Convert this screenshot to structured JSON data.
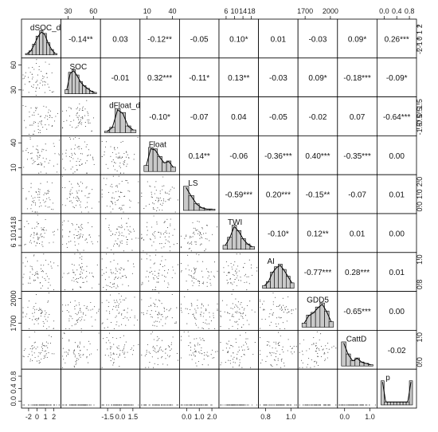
{
  "chart_data": {
    "type": "scatter_matrix",
    "variables": [
      "dSOC_dt",
      "SOC",
      "dFloat_dt",
      "Float",
      "LS",
      "TWI",
      "AI",
      "GDD5",
      "CattD",
      "p"
    ],
    "correlations": [
      [
        "",
        "-0.14**",
        "0.03",
        "-0.12**",
        "-0.05",
        "0.10*",
        "0.01",
        "-0.03",
        "0.09*",
        "0.26***"
      ],
      [
        "",
        "",
        "-0.01",
        "0.32***",
        "-0.11*",
        "0.13**",
        "-0.03",
        "0.09*",
        "-0.18***",
        "-0.09*"
      ],
      [
        "",
        "",
        "",
        "-0.10*",
        "-0.07",
        "0.04",
        "-0.05",
        "-0.02",
        "0.07",
        "-0.64***"
      ],
      [
        "",
        "",
        "",
        "",
        "0.14**",
        "-0.06",
        "-0.36***",
        "0.40***",
        "-0.35***",
        "0.00"
      ],
      [
        "",
        "",
        "",
        "",
        "",
        "-0.59***",
        "0.20***",
        "-0.15**",
        "-0.07",
        "0.01"
      ],
      [
        "",
        "",
        "",
        "",
        "",
        "",
        "-0.10*",
        "0.12**",
        "0.01",
        "0.00"
      ],
      [
        "",
        "",
        "",
        "",
        "",
        "",
        "",
        "-0.77***",
        "0.28***",
        "0.01"
      ],
      [
        "",
        "",
        "",
        "",
        "",
        "",
        "",
        "",
        "-0.65***",
        "0.00"
      ],
      [
        "",
        "",
        "",
        "",
        "",
        "",
        "",
        "",
        "",
        "-0.02"
      ]
    ],
    "top_axis_ticks": {
      "1": [
        "30",
        "60"
      ],
      "3": [
        "10",
        "40"
      ],
      "5": [
        "6",
        "10",
        "14",
        "18"
      ],
      "7": [
        "1700",
        "2000"
      ],
      "9": [
        "0.0",
        "0.4",
        "0.8"
      ]
    },
    "bottom_axis_ticks": {
      "0": [
        "-2",
        "0",
        "1",
        "2"
      ],
      "2": [
        "-1.5",
        "0.0",
        "1.5"
      ],
      "4": [
        "0.0",
        "1.0",
        "2.0"
      ],
      "6": [
        "0.8",
        "1.0"
      ],
      "8": [
        "0.0",
        "1.0"
      ]
    },
    "left_axis_ticks": {
      "1": [
        "30",
        "60"
      ],
      "3": [
        "10",
        "40"
      ],
      "5": [
        "6",
        "10",
        "14",
        "18"
      ],
      "7": [
        "1700",
        "2000"
      ],
      "9": [
        "0.0",
        "0.4",
        "0.8"
      ]
    },
    "right_axis_ticks": {
      "0": [
        "-2",
        "-1",
        "0",
        "1",
        "2"
      ],
      "2": [
        "-1.5",
        "-0.5",
        "0.5",
        "1.5"
      ],
      "4": [
        "0.0",
        "1.0",
        "2.0"
      ],
      "6": [
        "0.8",
        "1.0"
      ],
      "8": [
        "0.0",
        "1.0"
      ]
    },
    "histograms": [
      [
        1,
        3,
        8,
        14,
        18,
        16,
        9,
        4,
        1
      ],
      [
        3,
        16,
        18,
        14,
        9,
        6,
        4,
        2,
        1
      ],
      [
        1,
        4,
        18,
        15,
        5,
        2
      ],
      [
        4,
        16,
        15,
        10,
        6,
        7,
        3
      ],
      [
        18,
        11,
        5,
        2,
        1,
        1
      ],
      [
        3,
        9,
        18,
        14,
        8,
        4,
        2
      ],
      [
        2,
        5,
        12,
        16,
        18,
        14,
        9,
        4
      ],
      [
        3,
        9,
        11,
        15,
        18,
        12,
        4
      ],
      [
        18,
        9,
        4,
        6,
        3,
        2,
        1
      ],
      [
        16,
        2,
        2,
        2,
        2,
        2,
        2,
        2,
        2,
        16
      ]
    ],
    "colors": {
      "hist_fill": "#c9c9c9",
      "points": "#444444",
      "lines": "#000000",
      "density": "#000000"
    }
  }
}
